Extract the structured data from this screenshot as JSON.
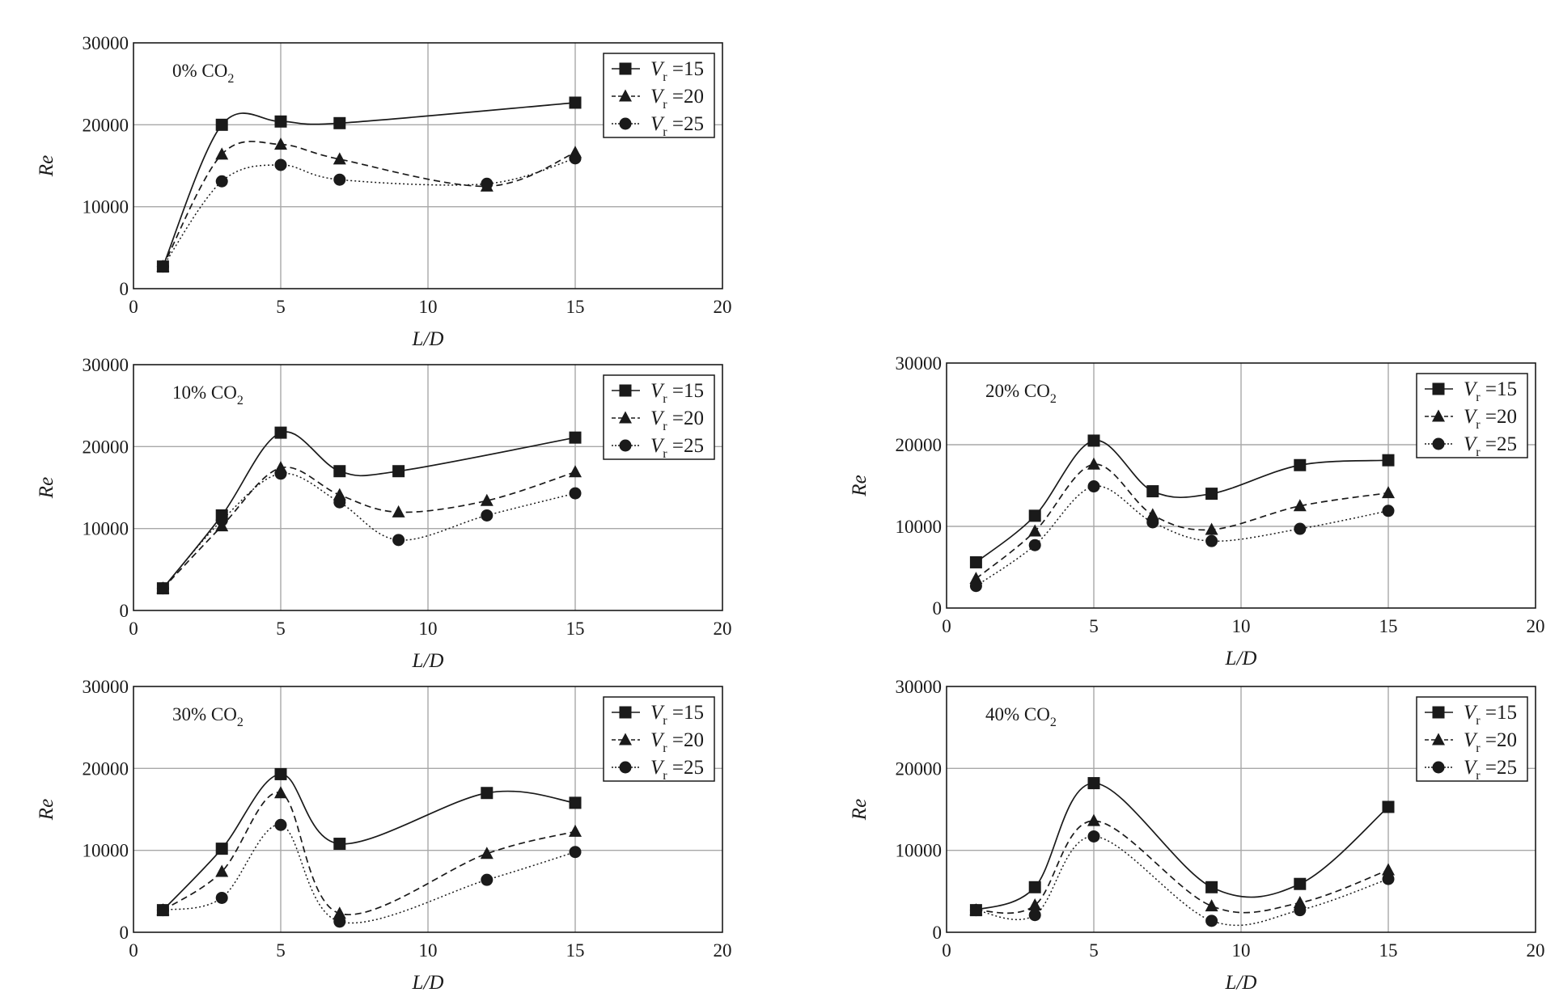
{
  "chart_data": [
    {
      "type": "line",
      "panel_label": "0% CO",
      "panel_label_sub": "2",
      "xlabel": "L/D",
      "ylabel": "Re",
      "xlim": [
        0,
        20
      ],
      "ylim": [
        0,
        30000
      ],
      "xticks": [
        0,
        5,
        10,
        15,
        20
      ],
      "yticks": [
        0,
        10000,
        20000,
        30000
      ],
      "grid": true,
      "legend_position": "top-right",
      "series": [
        {
          "name": "Vr=15",
          "label_main": "V",
          "label_sub": "r",
          "label_value": "=15",
          "marker": "square",
          "line_style": "solid",
          "x": [
            1,
            3,
            5,
            7,
            15
          ],
          "y": [
            2700,
            20000,
            20400,
            20200,
            22700
          ]
        },
        {
          "name": "Vr=20",
          "label_main": "V",
          "label_sub": "r",
          "label_value": "=20",
          "marker": "triangle",
          "line_style": "dashed",
          "x": [
            1,
            3,
            5,
            7,
            12,
            15
          ],
          "y": [
            2700,
            16400,
            17600,
            15800,
            12500,
            16600
          ]
        },
        {
          "name": "Vr=25",
          "label_main": "V",
          "label_sub": "r",
          "label_value": "=25",
          "marker": "circle",
          "line_style": "dotted",
          "x": [
            1,
            3,
            5,
            7,
            12,
            15
          ],
          "y": [
            2700,
            13100,
            15100,
            13300,
            12800,
            15900
          ]
        }
      ]
    },
    {
      "type": "line",
      "panel_label": "10% CO",
      "panel_label_sub": "2",
      "xlabel": "L/D",
      "ylabel": "Re",
      "xlim": [
        0,
        20
      ],
      "ylim": [
        0,
        30000
      ],
      "xticks": [
        0,
        5,
        10,
        15,
        20
      ],
      "yticks": [
        0,
        10000,
        20000,
        30000
      ],
      "grid": true,
      "legend_position": "top-right",
      "series": [
        {
          "name": "Vr=15",
          "label_main": "V",
          "label_sub": "r",
          "label_value": "=15",
          "marker": "square",
          "line_style": "solid",
          "x": [
            1,
            3,
            5,
            7,
            9,
            15
          ],
          "y": [
            2700,
            11600,
            21700,
            17000,
            17000,
            21100
          ]
        },
        {
          "name": "Vr=20",
          "label_main": "V",
          "label_sub": "r",
          "label_value": "=20",
          "marker": "triangle",
          "line_style": "dashed",
          "x": [
            1,
            3,
            5,
            7,
            9,
            12,
            15
          ],
          "y": [
            2700,
            10300,
            17400,
            14100,
            12000,
            13400,
            16900
          ]
        },
        {
          "name": "Vr=25",
          "label_main": "V",
          "label_sub": "r",
          "label_value": "=25",
          "marker": "circle",
          "line_style": "dotted",
          "x": [
            1,
            3,
            5,
            7,
            9,
            12,
            15
          ],
          "y": [
            2700,
            11000,
            16700,
            13200,
            8600,
            11600,
            14300
          ]
        }
      ]
    },
    {
      "type": "line",
      "panel_label": "20% CO",
      "panel_label_sub": "2",
      "xlabel": "L/D",
      "ylabel": "Re",
      "xlim": [
        0,
        20
      ],
      "ylim": [
        0,
        30000
      ],
      "xticks": [
        0,
        5,
        10,
        15,
        20
      ],
      "yticks": [
        0,
        10000,
        20000,
        30000
      ],
      "grid": true,
      "legend_position": "top-right",
      "series": [
        {
          "name": "Vr=15",
          "label_main": "V",
          "label_sub": "r",
          "label_value": "=15",
          "marker": "square",
          "line_style": "solid",
          "x": [
            1,
            3,
            5,
            7,
            9,
            12,
            15
          ],
          "y": [
            5600,
            11300,
            20500,
            14300,
            14000,
            17500,
            18100
          ]
        },
        {
          "name": "Vr=20",
          "label_main": "V",
          "label_sub": "r",
          "label_value": "=20",
          "marker": "triangle",
          "line_style": "dashed",
          "x": [
            1,
            3,
            5,
            7,
            9,
            12,
            15
          ],
          "y": [
            3600,
            9400,
            17600,
            11400,
            9600,
            12500,
            14100
          ]
        },
        {
          "name": "Vr=25",
          "label_main": "V",
          "label_sub": "r",
          "label_value": "=25",
          "marker": "circle",
          "line_style": "dotted",
          "x": [
            1,
            3,
            5,
            7,
            9,
            12,
            15
          ],
          "y": [
            2700,
            7700,
            14900,
            10500,
            8200,
            9700,
            11900
          ]
        }
      ]
    },
    {
      "type": "line",
      "panel_label": "30% CO",
      "panel_label_sub": "2",
      "xlabel": "L/D",
      "ylabel": "Re",
      "xlim": [
        0,
        20
      ],
      "ylim": [
        0,
        30000
      ],
      "xticks": [
        0,
        5,
        10,
        15,
        20
      ],
      "yticks": [
        0,
        10000,
        20000,
        30000
      ],
      "grid": true,
      "legend_position": "top-right",
      "series": [
        {
          "name": "Vr=15",
          "label_main": "V",
          "label_sub": "r",
          "label_value": "=15",
          "marker": "square",
          "line_style": "solid",
          "x": [
            1,
            3,
            5,
            7,
            12,
            15
          ],
          "y": [
            2700,
            10200,
            19300,
            10800,
            17000,
            15800
          ]
        },
        {
          "name": "Vr=20",
          "label_main": "V",
          "label_sub": "r",
          "label_value": "=20",
          "marker": "triangle",
          "line_style": "dashed",
          "x": [
            1,
            3,
            5,
            7,
            12,
            15
          ],
          "y": [
            2700,
            7400,
            17000,
            2300,
            9600,
            12300
          ]
        },
        {
          "name": "Vr=25",
          "label_main": "V",
          "label_sub": "r",
          "label_value": "=25",
          "marker": "circle",
          "line_style": "dotted",
          "x": [
            1,
            3,
            5,
            7,
            12,
            15
          ],
          "y": [
            2700,
            4200,
            13100,
            1300,
            6400,
            9800
          ]
        }
      ]
    },
    {
      "type": "line",
      "panel_label": "40% CO",
      "panel_label_sub": "2",
      "xlabel": "L/D",
      "ylabel": "Re",
      "xlim": [
        0,
        20
      ],
      "ylim": [
        0,
        30000
      ],
      "xticks": [
        0,
        5,
        10,
        15,
        20
      ],
      "yticks": [
        0,
        10000,
        20000,
        30000
      ],
      "grid": true,
      "legend_position": "top-right",
      "series": [
        {
          "name": "Vr=15",
          "label_main": "V",
          "label_sub": "r",
          "label_value": "=15",
          "marker": "square",
          "line_style": "solid",
          "x": [
            1,
            3,
            5,
            9,
            12,
            15
          ],
          "y": [
            2700,
            5500,
            18200,
            5500,
            5900,
            15300
          ]
        },
        {
          "name": "Vr=20",
          "label_main": "V",
          "label_sub": "r",
          "label_value": "=20",
          "marker": "triangle",
          "line_style": "dashed",
          "x": [
            1,
            3,
            5,
            9,
            12,
            15
          ],
          "y": [
            2700,
            3300,
            13600,
            3200,
            3600,
            7600
          ]
        },
        {
          "name": "Vr=25",
          "label_main": "V",
          "label_sub": "r",
          "label_value": "=25",
          "marker": "circle",
          "line_style": "dotted",
          "x": [
            1,
            3,
            5,
            9,
            12,
            15
          ],
          "y": [
            2700,
            2100,
            11700,
            1400,
            2700,
            6500
          ]
        }
      ]
    }
  ]
}
